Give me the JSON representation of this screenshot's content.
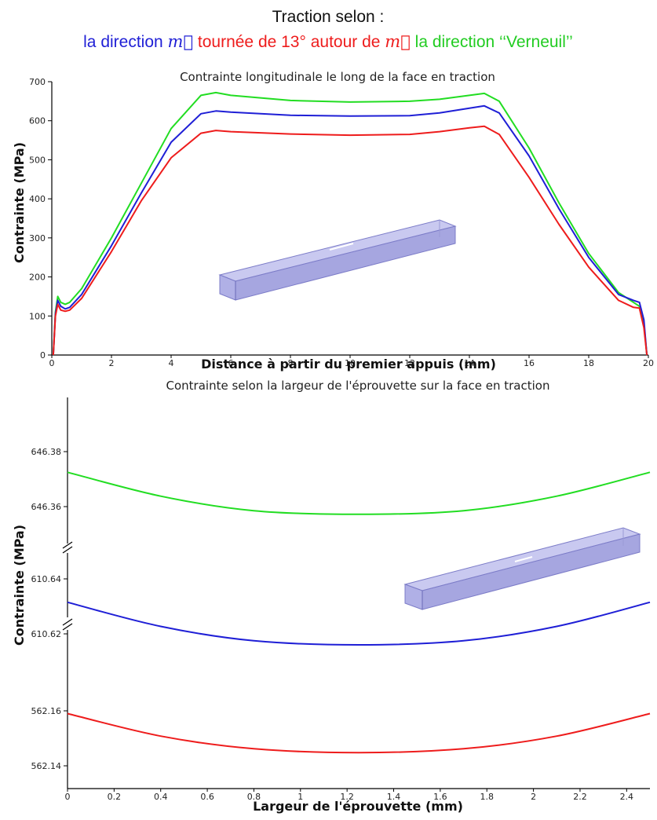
{
  "header": {
    "title": "Traction selon :",
    "legend": [
      {
        "prefix": "la direction ",
        "symbol": "m",
        "suffix": "",
        "color": "#1f1fd6"
      },
      {
        "prefix": " tournée de 13° autour de ",
        "symbol": "m",
        "suffix": "",
        "color": "#ee1c1c"
      },
      {
        "prefix": " la direction ‘‘Verneuil’’",
        "symbol": "",
        "suffix": "",
        "color": "#22cc22"
      }
    ]
  },
  "colors": {
    "blue": "#1f1fd6",
    "red": "#ee1c1c",
    "green": "#22dd22",
    "bar_fill": "#a8a8e6",
    "bar_edge": "#7c7cc8"
  },
  "chart_data": [
    {
      "type": "line",
      "title": "Contrainte longitudinale le long de la face en traction",
      "xlabel": "Distance à partir du premier appuis (mm)",
      "ylabel": "Contrainte (MPa)",
      "xlim": [
        0,
        20
      ],
      "ylim": [
        0,
        700
      ],
      "xticks": [
        "0",
        "2",
        "4",
        "6",
        "8",
        "10",
        "12",
        "14",
        "16",
        "18",
        "20"
      ],
      "yticks": [
        "0",
        "100",
        "200",
        "300",
        "400",
        "500",
        "600",
        "700"
      ],
      "grid": false,
      "series": [
        {
          "color": "green",
          "x": [
            0.05,
            0.12,
            0.2,
            0.3,
            0.45,
            0.6,
            1,
            2,
            3,
            4,
            5,
            5.5,
            6,
            8,
            10,
            12,
            13,
            14,
            14.5,
            15,
            16,
            17,
            18,
            19,
            19.5,
            19.7,
            19.85,
            19.95
          ],
          "y": [
            0,
            110,
            150,
            135,
            130,
            135,
            170,
            300,
            440,
            580,
            665,
            672,
            665,
            652,
            648,
            650,
            655,
            665,
            670,
            650,
            530,
            390,
            260,
            160,
            135,
            125,
            80,
            0
          ]
        },
        {
          "color": "blue",
          "x": [
            0.05,
            0.12,
            0.2,
            0.3,
            0.45,
            0.6,
            1,
            2,
            3,
            4,
            5,
            5.5,
            6,
            8,
            10,
            12,
            13,
            14,
            14.5,
            15,
            16,
            17,
            18,
            19,
            19.5,
            19.7,
            19.85,
            19.95
          ],
          "y": [
            0,
            105,
            140,
            125,
            118,
            122,
            155,
            280,
            415,
            545,
            618,
            625,
            622,
            614,
            612,
            613,
            620,
            632,
            638,
            620,
            510,
            375,
            250,
            155,
            140,
            135,
            90,
            0
          ]
        },
        {
          "color": "red",
          "x": [
            0.05,
            0.12,
            0.2,
            0.3,
            0.45,
            0.6,
            1,
            2,
            3,
            4,
            5,
            5.5,
            6,
            8,
            10,
            12,
            13,
            14,
            14.5,
            15,
            16,
            17,
            18,
            19,
            19.5,
            19.7,
            19.85,
            19.95
          ],
          "y": [
            0,
            100,
            130,
            115,
            112,
            115,
            145,
            265,
            395,
            505,
            568,
            575,
            572,
            566,
            563,
            565,
            572,
            582,
            586,
            565,
            455,
            335,
            225,
            140,
            122,
            120,
            70,
            0
          ]
        }
      ]
    },
    {
      "type": "line",
      "title": "Contrainte selon la largeur de l'éprouvette sur la face en traction",
      "xlabel": "Largeur de l'éprouvette (mm)",
      "ylabel": "Contrainte (MPa)",
      "xlim": [
        0,
        2.5
      ],
      "xticks": [
        0,
        0.2,
        0.4,
        0.6,
        0.8,
        1,
        1.2,
        1.4,
        1.6,
        1.8,
        2,
        2.2,
        2.4
      ],
      "broken_axis": true,
      "panels": [
        {
          "ylim": [
            646.35,
            646.385
          ],
          "yticks": [
            "646.36",
            "646.38"
          ],
          "series": {
            "color": "green",
            "x": [
              0,
              0.4,
              0.8,
              1.25,
              1.7,
              2.1,
              2.5
            ],
            "y": [
              646.3725,
              646.3638,
              646.3585,
              646.3572,
              646.3585,
              646.3638,
              646.3725
            ]
          }
        },
        {
          "ylim": [
            610.61,
            610.645
          ],
          "yticks": [
            "610.62",
            "610.64"
          ],
          "series": {
            "color": "blue",
            "x": [
              0,
              0.4,
              0.8,
              1.25,
              1.7,
              2.1,
              2.5
            ],
            "y": [
              610.6315,
              610.6227,
              610.6175,
              610.616,
              610.6175,
              610.6227,
              610.6315
            ]
          }
        },
        {
          "ylim": [
            562.135,
            562.17
          ],
          "yticks": [
            "562.14",
            "562.16"
          ],
          "series": {
            "color": "red",
            "x": [
              0,
              0.4,
              0.8,
              1.25,
              1.7,
              2.1,
              2.5
            ],
            "y": [
              562.159,
              562.1508,
              562.1462,
              562.1448,
              562.1462,
              562.1508,
              562.159
            ]
          }
        }
      ]
    }
  ]
}
